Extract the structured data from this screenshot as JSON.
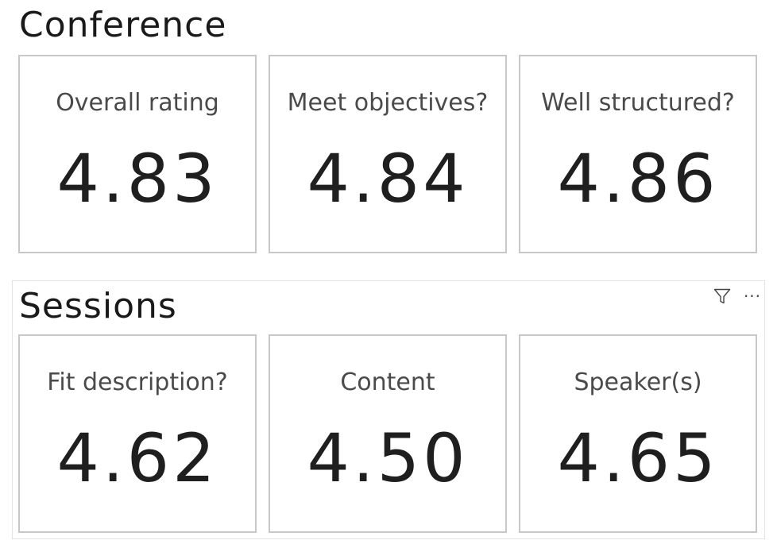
{
  "conference": {
    "title": "Conference",
    "cards": [
      {
        "label": "Overall rating",
        "value": "4.83"
      },
      {
        "label": "Meet objectives?",
        "value": "4.84"
      },
      {
        "label": "Well structured?",
        "value": "4.86"
      }
    ]
  },
  "sessions": {
    "title": "Sessions",
    "header_icons": [
      "filter-icon",
      "more-options-icon"
    ],
    "more_options_glyph": "···",
    "cards": [
      {
        "label": "Fit description?",
        "value": "4.62"
      },
      {
        "label": "Content",
        "value": "4.50"
      },
      {
        "label": "Speaker(s)",
        "value": "4.65"
      }
    ]
  }
}
